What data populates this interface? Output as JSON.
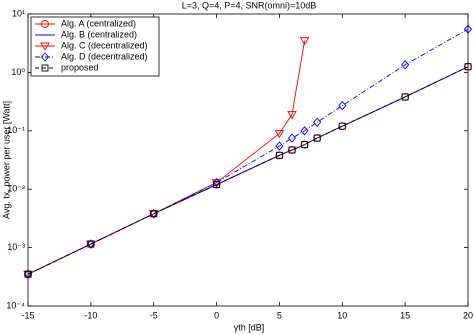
{
  "chart_data": {
    "type": "line",
    "title": "L=3, Q=4, P=4, SNR(omni)=10dB",
    "xlabel": "γth [dB]",
    "ylabel": "Avg. tx. power per user [Watt]",
    "x": [
      -15,
      -10,
      -5,
      0,
      5,
      6,
      7,
      8,
      10,
      15,
      20
    ],
    "series": [
      {
        "name": "Alg. A (centralized)",
        "color": "#ff0000",
        "marker": "circle",
        "dash": "solid",
        "values": [
          0.00035,
          0.00115,
          0.0038,
          0.012,
          0.038,
          0.047,
          0.058,
          0.075,
          0.12,
          0.38,
          1.25
        ]
      },
      {
        "name": "Alg. B (centralized)",
        "color": "#0000ff",
        "marker": "none",
        "dash": "solid",
        "values": [
          0.00035,
          0.00115,
          0.0038,
          0.012,
          0.038,
          0.047,
          0.058,
          0.075,
          0.12,
          0.38,
          1.25
        ]
      },
      {
        "name": "Alg. C (decentralized)",
        "color": "#ff0000",
        "marker": "triangle-down",
        "dash": "solid",
        "values": [
          0.00035,
          0.00115,
          0.0038,
          0.013,
          0.09,
          0.19,
          3.5,
          null,
          null,
          null,
          null
        ]
      },
      {
        "name": "Alg. D (decentralized)",
        "color": "#0000ff",
        "marker": "diamond",
        "dash": "dashdot",
        "values": [
          0.00035,
          0.00115,
          0.0038,
          0.013,
          0.055,
          0.075,
          0.1,
          0.14,
          0.27,
          1.35,
          5.5
        ]
      },
      {
        "name": "proposed",
        "color": "#000000",
        "marker": "square",
        "dash": "dashed",
        "values": [
          0.00035,
          0.00115,
          0.0038,
          0.012,
          0.038,
          0.047,
          0.058,
          0.075,
          0.12,
          0.38,
          1.25
        ]
      }
    ],
    "xlim": [
      -15,
      20
    ],
    "xticks": [
      -15,
      -10,
      -5,
      0,
      5,
      10,
      15,
      20
    ],
    "ylim": [
      0.0001,
      10
    ],
    "log_y": true,
    "yticks": [
      {
        "value": 0.0001,
        "label": "10⁻⁴"
      },
      {
        "value": 0.001,
        "label": "10⁻³"
      },
      {
        "value": 0.01,
        "label": "10⁻²"
      },
      {
        "value": 0.1,
        "label": "10⁻¹"
      },
      {
        "value": 1,
        "label": "10⁰"
      },
      {
        "value": 10,
        "label": "10¹"
      }
    ],
    "grid": false,
    "legend": "top-left"
  }
}
